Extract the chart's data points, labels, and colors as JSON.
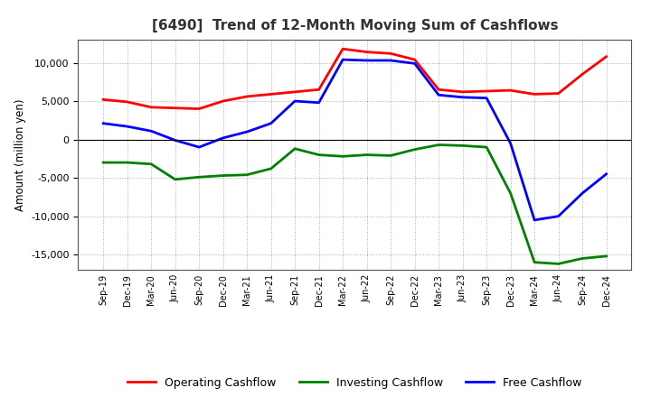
{
  "title": "[6490]  Trend of 12-Month Moving Sum of Cashflows",
  "ylabel": "Amount (million yen)",
  "x_labels": [
    "Sep-19",
    "Dec-19",
    "Mar-20",
    "Jun-20",
    "Sep-20",
    "Dec-20",
    "Mar-21",
    "Jun-21",
    "Sep-21",
    "Dec-21",
    "Mar-22",
    "Jun-22",
    "Sep-22",
    "Dec-22",
    "Mar-23",
    "Jun-23",
    "Sep-23",
    "Dec-23",
    "Mar-24",
    "Jun-24",
    "Sep-24",
    "Dec-24"
  ],
  "operating": [
    5200,
    4900,
    4200,
    4100,
    4000,
    5000,
    5600,
    5900,
    6200,
    6500,
    11800,
    11400,
    11200,
    10400,
    6500,
    6200,
    6300,
    6400,
    5900,
    6000,
    8500,
    10800
  ],
  "investing": [
    -3000,
    -3000,
    -3200,
    -5200,
    -4900,
    -4700,
    -4600,
    -3800,
    -1200,
    -2000,
    -2200,
    -2000,
    -2100,
    -1300,
    -700,
    -800,
    -1000,
    -7000,
    -16000,
    -16200,
    -15500,
    -15200
  ],
  "free": [
    2100,
    1700,
    1100,
    -100,
    -1000,
    200,
    1000,
    2100,
    5000,
    4800,
    10400,
    10300,
    10300,
    9900,
    5800,
    5500,
    5400,
    -500,
    -10500,
    -10000,
    -7000,
    -4500
  ],
  "operating_color": "#ff0000",
  "investing_color": "#008000",
  "free_color": "#0000ff",
  "ylim": [
    -17000,
    13000
  ],
  "yticks": [
    -15000,
    -10000,
    -5000,
    0,
    5000,
    10000
  ],
  "background_color": "#ffffff",
  "plot_bg_color": "#ffffff",
  "grid_color": "#aaaaaa",
  "line_width": 2.0,
  "title_color": "#333333"
}
